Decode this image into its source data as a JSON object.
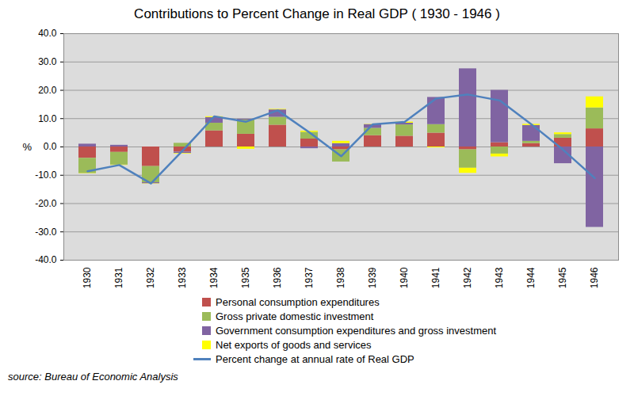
{
  "chart_data": {
    "type": "bar",
    "title": "Contributions to Percent Change in Real GDP ( 1930 - 1946 )",
    "y_label": "%",
    "caption": "source: Bureau of Economic Analysis",
    "categories": [
      "1930",
      "1931",
      "1932",
      "1933",
      "1934",
      "1935",
      "1936",
      "1937",
      "1938",
      "1939",
      "1940",
      "1941",
      "1942",
      "1943",
      "1944",
      "1945",
      "1946"
    ],
    "stacked": true,
    "grid": true,
    "legend": "bottom",
    "ylim": [
      -40,
      40
    ],
    "yticks": [
      {
        "value": -40,
        "label": "-40.0"
      },
      {
        "value": -30,
        "label": "-30.0"
      },
      {
        "value": -20,
        "label": "-20.0"
      },
      {
        "value": -10,
        "label": "-10.0"
      },
      {
        "value": 0,
        "label": "0.0"
      },
      {
        "value": 10,
        "label": "10.0"
      },
      {
        "value": 20,
        "label": "20.0"
      },
      {
        "value": 30,
        "label": "30.0"
      },
      {
        "value": 40,
        "label": "40.0"
      }
    ],
    "series": [
      {
        "name": "Personal consumption expenditures",
        "type": "bar",
        "color": "#C0504D",
        "values": [
          -4.0,
          -1.9,
          -6.9,
          -1.8,
          5.7,
          4.5,
          7.7,
          2.8,
          -1.0,
          4.0,
          3.8,
          4.9,
          -1.0,
          1.5,
          1.2,
          3.1,
          6.4
        ]
      },
      {
        "name": "Gross private domestic investment",
        "type": "bar",
        "color": "#9BBB59",
        "values": [
          -5.4,
          -4.5,
          -5.7,
          1.3,
          2.7,
          5.0,
          2.8,
          2.4,
          -4.3,
          2.6,
          4.0,
          3.0,
          -6.5,
          -2.5,
          0.8,
          1.3,
          7.4
        ]
      },
      {
        "name": "Government consumption expenditures and gross investment",
        "type": "bar",
        "color": "#8064A2",
        "values": [
          1.0,
          0.6,
          -0.4,
          -0.5,
          2.0,
          0.3,
          2.6,
          -0.6,
          1.2,
          1.3,
          0.6,
          9.6,
          27.6,
          18.5,
          5.6,
          -5.9,
          -28.4
        ]
      },
      {
        "name": "Net exports of goods and services",
        "type": "bar",
        "color": "#FFFF00",
        "values": [
          -0.1,
          -0.1,
          -0.1,
          -0.2,
          0.3,
          -0.8,
          0.2,
          0.4,
          0.8,
          0.1,
          0.4,
          -0.3,
          -1.8,
          -1.0,
          0.4,
          0.6,
          3.9
        ]
      },
      {
        "name": "Percent change at annual rate of Real GDP",
        "type": "line",
        "color": "#4F81BD",
        "values": [
          -8.6,
          -6.4,
          -12.9,
          -1.3,
          10.8,
          8.9,
          12.9,
          5.1,
          -3.3,
          8.0,
          8.8,
          17.1,
          18.5,
          16.4,
          8.0,
          -1.0,
          -11.0
        ]
      }
    ]
  }
}
